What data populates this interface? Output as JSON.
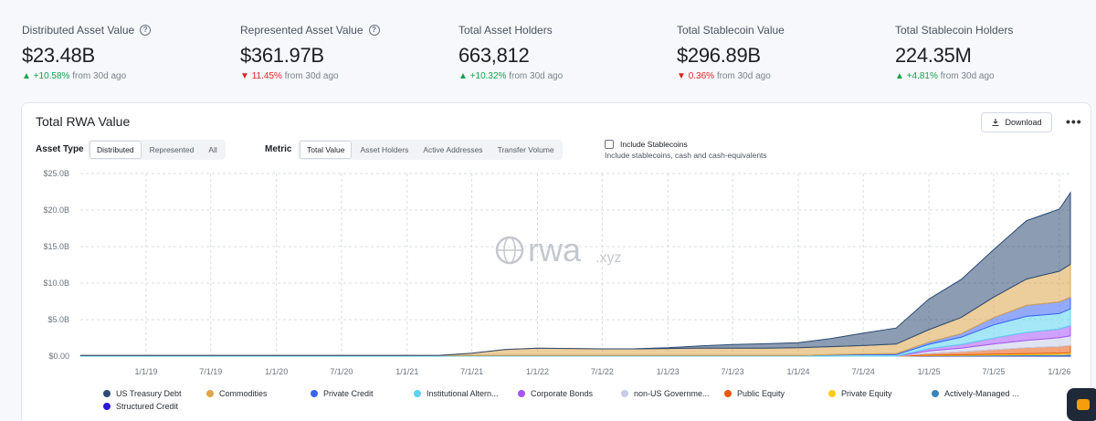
{
  "stats": [
    {
      "label": "Distributed Asset Value",
      "help": true,
      "value": "$23.48B",
      "delta_arrow": "▲",
      "delta": "+10.58%",
      "delta_dir": "up",
      "suffix": "from 30d ago"
    },
    {
      "label": "Represented Asset Value",
      "help": true,
      "value": "$361.97B",
      "delta_arrow": "▼",
      "delta": "11.45%",
      "delta_dir": "down",
      "suffix": "from 30d ago"
    },
    {
      "label": "Total Asset Holders",
      "help": false,
      "value": "663,812",
      "delta_arrow": "▲",
      "delta": "+10.32%",
      "delta_dir": "up",
      "suffix": "from 30d ago"
    },
    {
      "label": "Total Stablecoin Value",
      "help": false,
      "value": "$296.89B",
      "delta_arrow": "▼",
      "delta": "0.36%",
      "delta_dir": "down",
      "suffix": "from 30d ago"
    },
    {
      "label": "Total Stablecoin Holders",
      "help": false,
      "value": "224.35M",
      "delta_arrow": "▲",
      "delta": "+4.81%",
      "delta_dir": "up",
      "suffix": "from 30d ago"
    }
  ],
  "card": {
    "title": "Total RWA Value",
    "download_label": "Download",
    "more_label": "•••",
    "asset_type": {
      "label": "Asset Type",
      "options": [
        "Distributed",
        "Represented",
        "All"
      ],
      "selected": "Distributed"
    },
    "metric": {
      "label": "Metric",
      "options": [
        "Total Value",
        "Asset Holders",
        "Active Addresses",
        "Transfer Volume"
      ],
      "selected": "Total Value"
    },
    "stablecoins": {
      "label": "Include Stablecoins",
      "sublabel": "Include stablecoins, cash and cash-equivalents",
      "checked": false
    }
  },
  "watermark": {
    "brand": "rwa",
    "suffix": ".xyz"
  },
  "chart_data": {
    "type": "area",
    "stacked": true,
    "grid": true,
    "y_ticks": [
      "$0.00",
      "$5.0B",
      "$10.0B",
      "$15.0B",
      "$20.0B",
      "$25.0B"
    ],
    "ylim": [
      0,
      25
    ],
    "x_ticks": [
      "1/1/19",
      "7/1/19",
      "1/1/20",
      "7/1/20",
      "1/1/21",
      "7/1/21",
      "1/1/22",
      "7/1/22",
      "1/1/23",
      "7/1/23",
      "1/1/24",
      "7/1/24",
      "1/1/25",
      "7/1/25",
      "1/1/26"
    ],
    "x": [
      "2018-07-01",
      "2019-01-01",
      "2019-07-01",
      "2020-01-01",
      "2020-07-01",
      "2021-01-01",
      "2021-04-01",
      "2021-07-01",
      "2021-10-01",
      "2022-01-01",
      "2022-04-01",
      "2022-07-01",
      "2022-10-01",
      "2023-01-01",
      "2023-04-01",
      "2023-07-01",
      "2023-10-01",
      "2024-01-01",
      "2024-04-01",
      "2024-07-01",
      "2024-10-01",
      "2025-01-01",
      "2025-04-01",
      "2025-07-01",
      "2025-10-01",
      "2026-01-01",
      "2026-02-01"
    ],
    "series": [
      {
        "name": "Structured Credit",
        "color": "#2a1ad6",
        "values": [
          0,
          0,
          0,
          0,
          0,
          0,
          0,
          0,
          0,
          0,
          0,
          0,
          0,
          0,
          0,
          0,
          0,
          0,
          0,
          0,
          0,
          0.02,
          0.03,
          0.04,
          0.05,
          0.06,
          0.07
        ]
      },
      {
        "name": "Actively-Managed ...",
        "color": "#3b82b8",
        "values": [
          0,
          0,
          0,
          0,
          0,
          0,
          0,
          0,
          0,
          0,
          0,
          0,
          0,
          0,
          0,
          0,
          0,
          0,
          0,
          0,
          0,
          0.05,
          0.08,
          0.12,
          0.15,
          0.18,
          0.2
        ]
      },
      {
        "name": "Private Equity",
        "color": "#facc15",
        "values": [
          0,
          0,
          0,
          0,
          0,
          0,
          0,
          0,
          0,
          0,
          0,
          0,
          0,
          0,
          0,
          0,
          0,
          0,
          0,
          0,
          0,
          0.05,
          0.08,
          0.12,
          0.15,
          0.18,
          0.2
        ]
      },
      {
        "name": "Public Equity",
        "color": "#ea580c",
        "values": [
          0,
          0,
          0,
          0,
          0,
          0,
          0,
          0,
          0,
          0,
          0,
          0,
          0,
          0,
          0,
          0,
          0,
          0,
          0,
          0,
          0,
          0.25,
          0.4,
          0.6,
          0.8,
          0.9,
          1.0
        ]
      },
      {
        "name": "non-US Governme...",
        "color": "#c7cde8",
        "values": [
          0,
          0,
          0,
          0,
          0,
          0,
          0,
          0,
          0,
          0,
          0,
          0,
          0,
          0,
          0,
          0,
          0,
          0,
          0,
          0,
          0,
          0.35,
          0.5,
          0.8,
          1.0,
          1.2,
          1.3
        ]
      },
      {
        "name": "Corporate Bonds",
        "color": "#a855f7",
        "values": [
          0,
          0,
          0,
          0,
          0,
          0,
          0,
          0,
          0,
          0,
          0,
          0,
          0,
          0,
          0,
          0,
          0,
          0,
          0,
          0,
          0,
          0.3,
          0.5,
          0.8,
          1.1,
          1.2,
          1.4
        ]
      },
      {
        "name": "Institutional Altern...",
        "color": "#5bd3f0",
        "values": [
          0.1,
          0.1,
          0.1,
          0.1,
          0.1,
          0.1,
          0.1,
          0.1,
          0.1,
          0.1,
          0.1,
          0.1,
          0.1,
          0.1,
          0.1,
          0.1,
          0.1,
          0.1,
          0.15,
          0.2,
          0.2,
          0.6,
          1.0,
          1.8,
          2.2,
          2.1,
          2.3
        ]
      },
      {
        "name": "Private Credit",
        "color": "#3b63f6",
        "values": [
          0,
          0,
          0,
          0,
          0,
          0,
          0,
          0,
          0,
          0,
          0,
          0,
          0,
          0,
          0,
          0,
          0,
          0,
          0.05,
          0.1,
          0.15,
          0.3,
          0.5,
          1.0,
          1.5,
          1.6,
          1.6
        ]
      },
      {
        "name": "Commodities",
        "color": "#dca64a",
        "values": [
          0,
          0,
          0,
          0,
          0,
          0,
          0.01,
          0.3,
          0.8,
          1.0,
          0.95,
          0.9,
          0.9,
          0.95,
          1.0,
          1.0,
          1.0,
          1.05,
          1.1,
          1.15,
          1.3,
          1.7,
          2.2,
          2.8,
          3.6,
          4.2,
          4.5
        ]
      },
      {
        "name": "US Treasury Debt",
        "color": "#2c4a75",
        "values": [
          0,
          0,
          0,
          0,
          0,
          0,
          0,
          0,
          0,
          0,
          0,
          0,
          0.01,
          0.1,
          0.3,
          0.5,
          0.6,
          0.7,
          1.1,
          1.7,
          2.2,
          4.2,
          5.2,
          6.5,
          8.0,
          8.5,
          9.8
        ]
      }
    ]
  }
}
